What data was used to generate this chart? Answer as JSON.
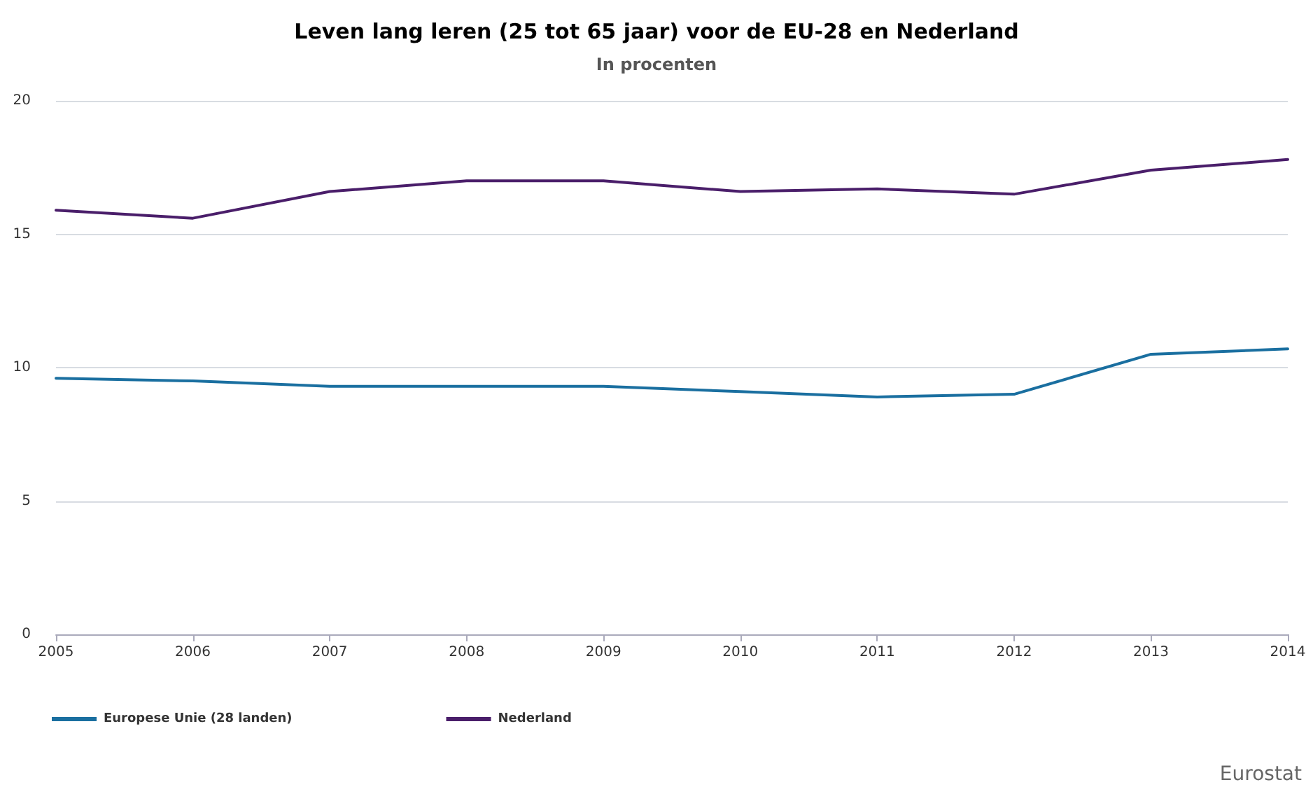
{
  "chart_data": {
    "type": "line",
    "title": "Leven lang leren (25 tot 65 jaar) voor de EU-28 en Nederland",
    "subtitle": "In procenten",
    "x": [
      2005,
      2006,
      2007,
      2008,
      2009,
      2010,
      2011,
      2012,
      2013,
      2014
    ],
    "series": [
      {
        "name": "Europese Unie (28 landen)",
        "color": "#1a6fa0",
        "values": [
          9.6,
          9.5,
          9.3,
          9.3,
          9.3,
          9.1,
          8.9,
          9.0,
          10.5,
          10.7
        ]
      },
      {
        "name": "Nederland",
        "color": "#4a1e6a",
        "values": [
          15.9,
          15.6,
          16.6,
          17.0,
          17.0,
          16.6,
          16.7,
          16.5,
          17.4,
          17.8
        ]
      }
    ],
    "xlim": [
      2005,
      2014
    ],
    "xticks": [
      2005,
      2006,
      2007,
      2008,
      2009,
      2010,
      2011,
      2012,
      2013,
      2014
    ],
    "ylim": [
      0,
      20
    ],
    "yticks": [
      0,
      5,
      10,
      15,
      20
    ],
    "grid": "y",
    "legend": "bottom left",
    "marker": "none",
    "line_style": "solid",
    "annotations": [
      "Eurostat"
    ]
  }
}
